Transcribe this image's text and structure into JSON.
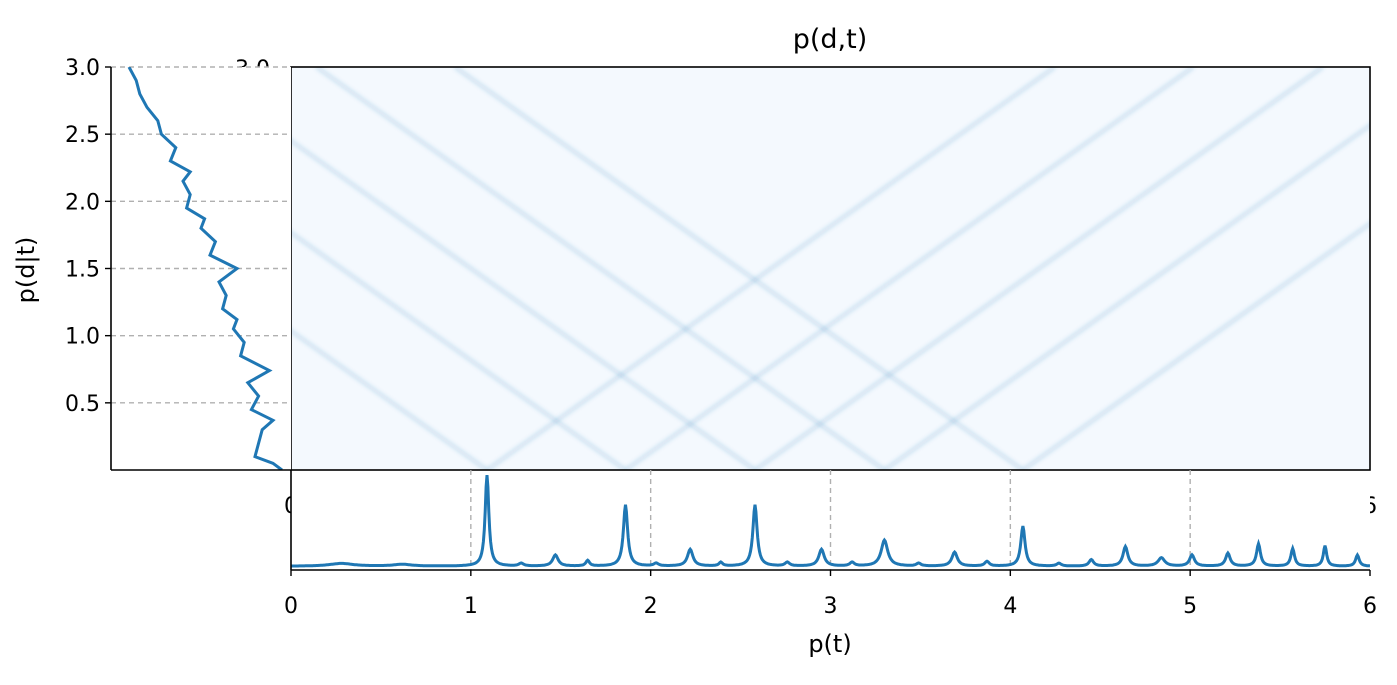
{
  "chart_data": [
    {
      "type": "heatmap",
      "title": "p(d,t)",
      "xlim": [
        0,
        6
      ],
      "ylim": [
        0,
        3
      ],
      "x_tick_labels": [
        "0",
        "",
        "",
        "",
        "",
        "",
        "6"
      ],
      "y_tick_labels": [
        "3.0"
      ],
      "colormap": "Blues",
      "vertical_ridges_t": [
        1.09,
        1.86,
        2.58,
        3.3,
        4.07,
        2.22,
        2.95,
        3.69,
        4.64,
        5.38,
        5.75,
        1.47,
        5.0,
        5.57,
        4.84
      ],
      "diagonal_families": [
        {
          "t0": 1.09,
          "slope_d_per_t": 0.95
        },
        {
          "t0": 1.09,
          "slope_d_per_t": -0.95
        },
        {
          "t0": 1.86,
          "slope_d_per_t": 0.95
        },
        {
          "t0": 1.86,
          "slope_d_per_t": -0.95
        },
        {
          "t0": 2.58,
          "slope_d_per_t": 0.95
        },
        {
          "t0": 2.58,
          "slope_d_per_t": -0.95
        },
        {
          "t0": 3.3,
          "slope_d_per_t": 0.95
        },
        {
          "t0": 3.3,
          "slope_d_per_t": -0.95
        },
        {
          "t0": 4.07,
          "slope_d_per_t": 0.95
        },
        {
          "t0": 4.07,
          "slope_d_per_t": -0.95
        }
      ],
      "colors": {
        "low": "#f4f9fe",
        "high": "#1f6fb2"
      }
    },
    {
      "type": "line",
      "ylabel": "p(d|t)",
      "orientation": "vertical",
      "ylim": [
        0,
        3
      ],
      "y_ticks": [
        0.5,
        1.0,
        1.5,
        2.0,
        2.5,
        3.0
      ],
      "y_tick_labels": [
        "0.5",
        "1.0",
        "1.5",
        "2.0",
        "2.5",
        "3.0"
      ],
      "grid": "horizontal dashed",
      "color": "#1f77b4",
      "d": [
        0.0,
        0.05,
        0.1,
        0.2,
        0.3,
        0.37,
        0.45,
        0.55,
        0.65,
        0.74,
        0.85,
        0.95,
        1.05,
        1.12,
        1.2,
        1.3,
        1.4,
        1.5,
        1.6,
        1.7,
        1.8,
        1.87,
        1.95,
        2.05,
        2.15,
        2.22,
        2.3,
        2.4,
        2.5,
        2.6,
        2.7,
        2.8,
        2.9,
        3.0
      ],
      "value": [
        0.95,
        0.9,
        0.8,
        0.82,
        0.84,
        0.9,
        0.78,
        0.82,
        0.76,
        0.88,
        0.72,
        0.74,
        0.68,
        0.7,
        0.62,
        0.64,
        0.6,
        0.7,
        0.55,
        0.58,
        0.5,
        0.52,
        0.42,
        0.44,
        0.4,
        0.44,
        0.33,
        0.36,
        0.28,
        0.26,
        0.2,
        0.16,
        0.14,
        0.1
      ]
    },
    {
      "type": "line",
      "xlabel": "p(t)",
      "xlim": [
        0,
        6
      ],
      "x_ticks": [
        0,
        1,
        2,
        3,
        4,
        5,
        6
      ],
      "x_tick_labels": [
        "0",
        "1",
        "2",
        "3",
        "4",
        "5",
        "6"
      ],
      "grid": "vertical dashed",
      "color": "#1f77b4",
      "baseline": 0.04,
      "peaks": [
        {
          "t": 0.28,
          "height": 0.03,
          "width": 0.08
        },
        {
          "t": 0.62,
          "height": 0.02,
          "width": 0.06
        },
        {
          "t": 1.09,
          "height": 1.0,
          "width": 0.012
        },
        {
          "t": 1.28,
          "height": 0.03,
          "width": 0.015
        },
        {
          "t": 1.47,
          "height": 0.12,
          "width": 0.018
        },
        {
          "t": 1.65,
          "height": 0.06,
          "width": 0.012
        },
        {
          "t": 1.86,
          "height": 0.66,
          "width": 0.014
        },
        {
          "t": 2.03,
          "height": 0.03,
          "width": 0.015
        },
        {
          "t": 2.22,
          "height": 0.18,
          "width": 0.018
        },
        {
          "t": 2.39,
          "height": 0.04,
          "width": 0.012
        },
        {
          "t": 2.58,
          "height": 0.66,
          "width": 0.014
        },
        {
          "t": 2.76,
          "height": 0.04,
          "width": 0.015
        },
        {
          "t": 2.95,
          "height": 0.18,
          "width": 0.018
        },
        {
          "t": 3.12,
          "height": 0.04,
          "width": 0.015
        },
        {
          "t": 3.3,
          "height": 0.28,
          "width": 0.022
        },
        {
          "t": 3.49,
          "height": 0.03,
          "width": 0.015
        },
        {
          "t": 3.69,
          "height": 0.15,
          "width": 0.018
        },
        {
          "t": 3.87,
          "height": 0.05,
          "width": 0.015
        },
        {
          "t": 4.07,
          "height": 0.43,
          "width": 0.014
        },
        {
          "t": 4.27,
          "height": 0.03,
          "width": 0.015
        },
        {
          "t": 4.45,
          "height": 0.07,
          "width": 0.015
        },
        {
          "t": 4.64,
          "height": 0.21,
          "width": 0.016
        },
        {
          "t": 4.84,
          "height": 0.09,
          "width": 0.022
        },
        {
          "t": 5.01,
          "height": 0.12,
          "width": 0.016
        },
        {
          "t": 5.21,
          "height": 0.14,
          "width": 0.015
        },
        {
          "t": 5.38,
          "height": 0.24,
          "width": 0.013
        },
        {
          "t": 5.57,
          "height": 0.19,
          "width": 0.012
        },
        {
          "t": 5.75,
          "height": 0.22,
          "width": 0.011
        },
        {
          "t": 5.93,
          "height": 0.12,
          "width": 0.012
        }
      ]
    }
  ]
}
